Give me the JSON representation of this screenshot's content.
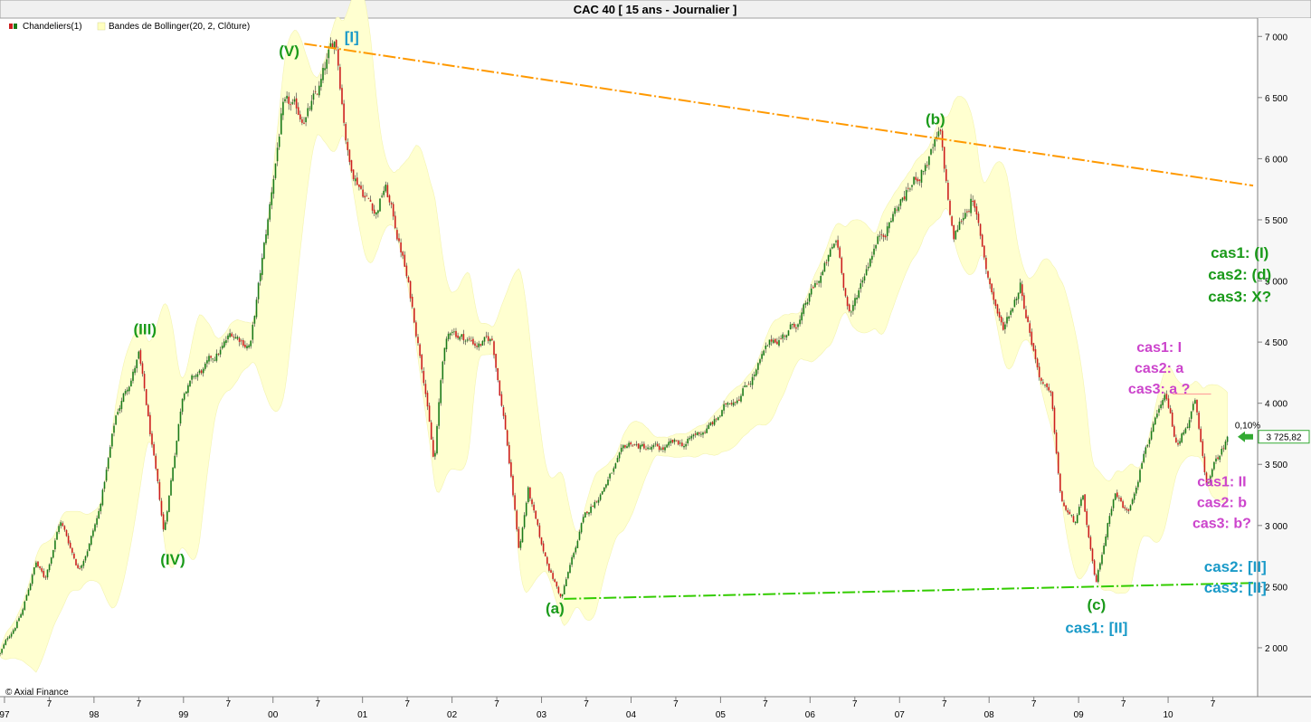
{
  "header": {
    "title": "CAC 40   [ 15 ans - Journalier ]"
  },
  "legend": {
    "candles_label": "Chandeliers(1)",
    "bollinger_label": "Bandes de Bollinger(20, 2, Clôture)"
  },
  "footer": {
    "credit": "© Axial Finance"
  },
  "colors": {
    "up": "#1a7a1a",
    "down": "#cc1f1f",
    "band": "#ffffd0",
    "resistance": "#ff9900",
    "support": "#33cc00",
    "green_label": "#1a9a1a",
    "blue_label": "#1a9ac8",
    "magenta_label": "#cc44cc",
    "last_price": "#33aa33"
  },
  "chart_data": {
    "type": "candlestick",
    "title": "CAC 40   [ 15 ans - Journalier ]",
    "ylim": [
      1600,
      7150
    ],
    "y_ticks": [
      {
        "value": 2000,
        "label": "2 000"
      },
      {
        "value": 2500,
        "label": "2 500"
      },
      {
        "value": 3000,
        "label": "3 000"
      },
      {
        "value": 3500,
        "label": "3 500"
      },
      {
        "value": 4000,
        "label": "4 000"
      },
      {
        "value": 4500,
        "label": "4 500"
      },
      {
        "value": 5000,
        "label": "5 000"
      },
      {
        "value": 5500,
        "label": "5 500"
      },
      {
        "value": 6000,
        "label": "6 000"
      },
      {
        "value": 6500,
        "label": "6 500"
      },
      {
        "value": 7000,
        "label": "7 000"
      }
    ],
    "xlim": [
      1996.95,
      2011.0
    ],
    "x_ticks": [
      {
        "t": 1997.0,
        "label": "97",
        "year": true
      },
      {
        "t": 1997.5,
        "label": "7",
        "year": false
      },
      {
        "t": 1998.0,
        "label": "98",
        "year": true
      },
      {
        "t": 1998.5,
        "label": "7",
        "year": false
      },
      {
        "t": 1999.0,
        "label": "99",
        "year": true
      },
      {
        "t": 1999.5,
        "label": "7",
        "year": false
      },
      {
        "t": 2000.0,
        "label": "00",
        "year": true
      },
      {
        "t": 2000.5,
        "label": "7",
        "year": false
      },
      {
        "t": 2001.0,
        "label": "01",
        "year": true
      },
      {
        "t": 2001.5,
        "label": "7",
        "year": false
      },
      {
        "t": 2002.0,
        "label": "02",
        "year": true
      },
      {
        "t": 2002.5,
        "label": "7",
        "year": false
      },
      {
        "t": 2003.0,
        "label": "03",
        "year": true
      },
      {
        "t": 2003.5,
        "label": "7",
        "year": false
      },
      {
        "t": 2004.0,
        "label": "04",
        "year": true
      },
      {
        "t": 2004.5,
        "label": "7",
        "year": false
      },
      {
        "t": 2005.0,
        "label": "05",
        "year": true
      },
      {
        "t": 2005.5,
        "label": "7",
        "year": false
      },
      {
        "t": 2006.0,
        "label": "06",
        "year": true
      },
      {
        "t": 2006.5,
        "label": "7",
        "year": false
      },
      {
        "t": 2007.0,
        "label": "07",
        "year": true
      },
      {
        "t": 2007.5,
        "label": "7",
        "year": false
      },
      {
        "t": 2008.0,
        "label": "08",
        "year": true
      },
      {
        "t": 2008.5,
        "label": "7",
        "year": false
      },
      {
        "t": 2009.0,
        "label": "09",
        "year": true
      },
      {
        "t": 2009.5,
        "label": "7",
        "year": false
      },
      {
        "t": 2010.0,
        "label": "10",
        "year": true
      },
      {
        "t": 2010.5,
        "label": "7",
        "year": false
      }
    ],
    "series": [
      {
        "points": [
          [
            1996.95,
            1950
          ],
          [
            1997.2,
            2300
          ],
          [
            1997.35,
            2700
          ],
          [
            1997.45,
            2550
          ],
          [
            1997.62,
            3050
          ],
          [
            1997.83,
            2650
          ],
          [
            1998.05,
            3100
          ],
          [
            1998.25,
            3900
          ],
          [
            1998.5,
            4400
          ],
          [
            1998.67,
            3500
          ],
          [
            1998.78,
            2900
          ],
          [
            1999.0,
            4150
          ],
          [
            1999.3,
            4300
          ],
          [
            1999.55,
            4550
          ],
          [
            1999.75,
            4500
          ],
          [
            1999.95,
            5500
          ],
          [
            2000.1,
            6400
          ],
          [
            2000.3,
            6300
          ],
          [
            2000.5,
            6500
          ],
          [
            2000.7,
            6944
          ],
          [
            2000.85,
            6000
          ],
          [
            2001.15,
            5600
          ],
          [
            2001.25,
            5800
          ],
          [
            2001.45,
            5200
          ],
          [
            2001.7,
            4200
          ],
          [
            2001.8,
            3500
          ],
          [
            2001.9,
            4400
          ],
          [
            2002.0,
            4600
          ],
          [
            2002.25,
            4500
          ],
          [
            2002.45,
            4500
          ],
          [
            2002.6,
            3800
          ],
          [
            2002.75,
            2800
          ],
          [
            2002.85,
            3300
          ],
          [
            2003.0,
            2800
          ],
          [
            2003.22,
            2403
          ],
          [
            2003.45,
            3000
          ],
          [
            2003.75,
            3400
          ],
          [
            2004.0,
            3650
          ],
          [
            2004.3,
            3600
          ],
          [
            2004.6,
            3650
          ],
          [
            2004.95,
            3850
          ],
          [
            2005.3,
            4200
          ],
          [
            2005.6,
            4500
          ],
          [
            2005.9,
            4700
          ],
          [
            2006.3,
            5300
          ],
          [
            2006.45,
            4700
          ],
          [
            2006.7,
            5300
          ],
          [
            2006.95,
            5600
          ],
          [
            2007.15,
            5800
          ],
          [
            2007.45,
            6168
          ],
          [
            2007.6,
            5300
          ],
          [
            2007.8,
            5700
          ],
          [
            2008.0,
            5000
          ],
          [
            2008.15,
            4600
          ],
          [
            2008.35,
            5000
          ],
          [
            2008.55,
            4300
          ],
          [
            2008.7,
            4000
          ],
          [
            2008.8,
            3200
          ],
          [
            2008.95,
            3000
          ],
          [
            2009.05,
            3200
          ],
          [
            2009.19,
            2465
          ],
          [
            2009.4,
            3300
          ],
          [
            2009.55,
            3100
          ],
          [
            2009.75,
            3700
          ],
          [
            2009.98,
            4000
          ],
          [
            2010.1,
            3600
          ],
          [
            2010.3,
            4000
          ],
          [
            2010.42,
            3300
          ],
          [
            2010.6,
            3600
          ],
          [
            2010.68,
            3726
          ]
        ]
      }
    ],
    "last_price": {
      "label": "3 725,82",
      "value": 3725.82,
      "change_label": "0,10%"
    },
    "trendlines": [
      {
        "name": "resistance",
        "from": [
          2000.35,
          6940
        ],
        "to": [
          2010.95,
          5780
        ]
      },
      {
        "name": "support",
        "from": [
          2003.25,
          2400
        ],
        "to": [
          2010.95,
          2530
        ]
      }
    ],
    "annotations": [
      {
        "text": "[I]",
        "t": 2000.88,
        "v": 6955,
        "style": "blue"
      },
      {
        "text": "(V)",
        "t": 2000.18,
        "v": 6840,
        "style": "green"
      },
      {
        "text": "(III)",
        "t": 1998.57,
        "v": 4562,
        "style": "green"
      },
      {
        "text": "(IV)",
        "t": 1998.88,
        "v": 2680,
        "style": "green"
      },
      {
        "text": "(a)",
        "t": 2003.15,
        "v": 2280,
        "style": "green"
      },
      {
        "text": "(b)",
        "t": 2007.4,
        "v": 6280,
        "style": "green"
      },
      {
        "text": "(c)",
        "t": 2009.2,
        "v": 2310,
        "style": "green"
      },
      {
        "text": "cas1: [II]",
        "t": 2009.2,
        "v": 2120,
        "style": "blue"
      },
      {
        "text": "cas1: (I)",
        "t": 2010.8,
        "v": 5190,
        "style": "green"
      },
      {
        "text": "cas2: (d)",
        "t": 2010.8,
        "v": 5010,
        "style": "green"
      },
      {
        "text": "cas3: X?",
        "t": 2010.8,
        "v": 4830,
        "style": "green"
      },
      {
        "text": "cas1: I",
        "t": 2009.9,
        "v": 4420,
        "style": "magenta"
      },
      {
        "text": "cas2: a",
        "t": 2009.9,
        "v": 4250,
        "style": "magenta"
      },
      {
        "text": "cas3: a ?",
        "t": 2009.9,
        "v": 4080,
        "style": "magenta"
      },
      {
        "text": "cas1: II",
        "t": 2010.6,
        "v": 3320,
        "style": "magenta"
      },
      {
        "text": "cas2: b",
        "t": 2010.6,
        "v": 3150,
        "style": "magenta"
      },
      {
        "text": "cas3: b?",
        "t": 2010.6,
        "v": 2980,
        "style": "magenta"
      },
      {
        "text": "cas2: [II]",
        "t": 2010.75,
        "v": 2620,
        "style": "blue"
      },
      {
        "text": "cas3: [II]",
        "t": 2010.75,
        "v": 2450,
        "style": "blue"
      }
    ]
  }
}
